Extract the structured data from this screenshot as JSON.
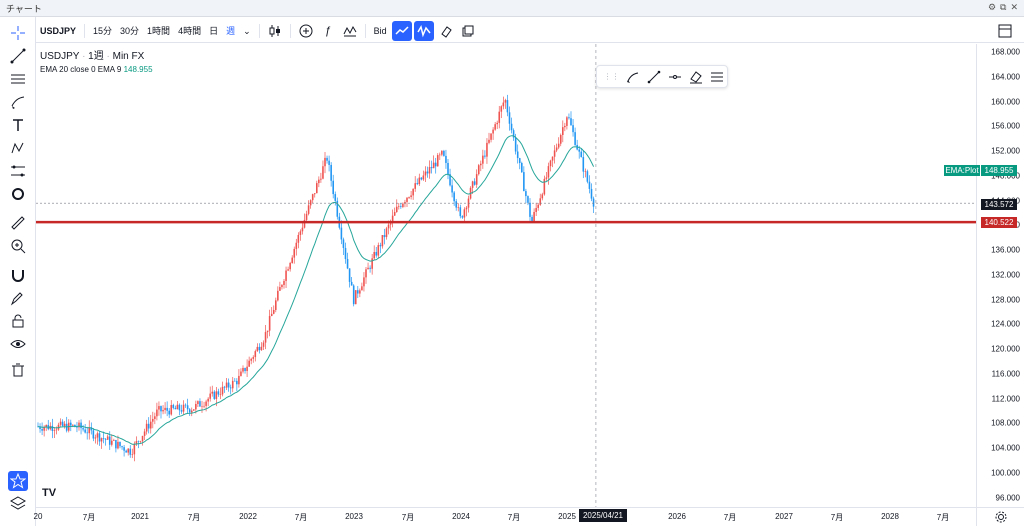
{
  "window": {
    "title": "チャート"
  },
  "toolbar": {
    "symbol": "USDJPY",
    "intervals": [
      "15分",
      "30分",
      "1時間",
      "4時間",
      "日",
      "週"
    ],
    "active_interval": "週",
    "price_source": "Bid"
  },
  "legend": {
    "symbol": "USDJPY",
    "interval": "1週",
    "source": "Min FX",
    "ema_label": "EMA 20 close 0 EMA 9",
    "ema_value": "148.955"
  },
  "price_axis": {
    "ticks": [
      "168.000",
      "164.000",
      "160.000",
      "156.000",
      "152.000",
      "148.000",
      "144.000",
      "140.000",
      "136.000",
      "132.000",
      "128.000",
      "124.000",
      "120.000",
      "116.000",
      "112.000",
      "108.000",
      "104.000",
      "100.000",
      "96.000"
    ],
    "current_price": "143.572",
    "horizontal_line_price": "140.522",
    "ema_plot_label": "EMA:Plot",
    "ema_plot_value": "148.955"
  },
  "time_axis": {
    "ticks": [
      "20",
      "7月",
      "2021",
      "7月",
      "2022",
      "7月",
      "2023",
      "7月",
      "2024",
      "7月",
      "2025",
      "2026",
      "7月",
      "2027",
      "7月",
      "2028",
      "7月"
    ],
    "crosshair_date": "2025/04/21"
  },
  "colors": {
    "up": "#ef5350",
    "down": "#2196f3",
    "ema": "#26a69a",
    "hline": "#c62828",
    "accent": "#2962ff"
  },
  "chart_data": {
    "type": "candlestick",
    "timeframe": "weekly",
    "ylim": [
      96,
      168
    ],
    "approx_close_path": [
      {
        "date": "2020-06",
        "close": 107.5
      },
      {
        "date": "2020-12",
        "close": 103.5
      },
      {
        "date": "2021-03",
        "close": 110.0
      },
      {
        "date": "2021-07",
        "close": 110.5
      },
      {
        "date": "2021-12",
        "close": 115.0
      },
      {
        "date": "2022-03",
        "close": 122.0
      },
      {
        "date": "2022-05",
        "close": 131.0
      },
      {
        "date": "2022-10",
        "close": 151.0
      },
      {
        "date": "2023-01",
        "close": 128.0
      },
      {
        "date": "2023-06",
        "close": 143.0
      },
      {
        "date": "2023-11",
        "close": 151.5
      },
      {
        "date": "2024-01",
        "close": 141.0
      },
      {
        "date": "2024-06",
        "close": 160.5
      },
      {
        "date": "2024-09",
        "close": 140.5
      },
      {
        "date": "2025-01",
        "close": 158.0
      },
      {
        "date": "2025-04",
        "close": 143.6
      }
    ]
  }
}
